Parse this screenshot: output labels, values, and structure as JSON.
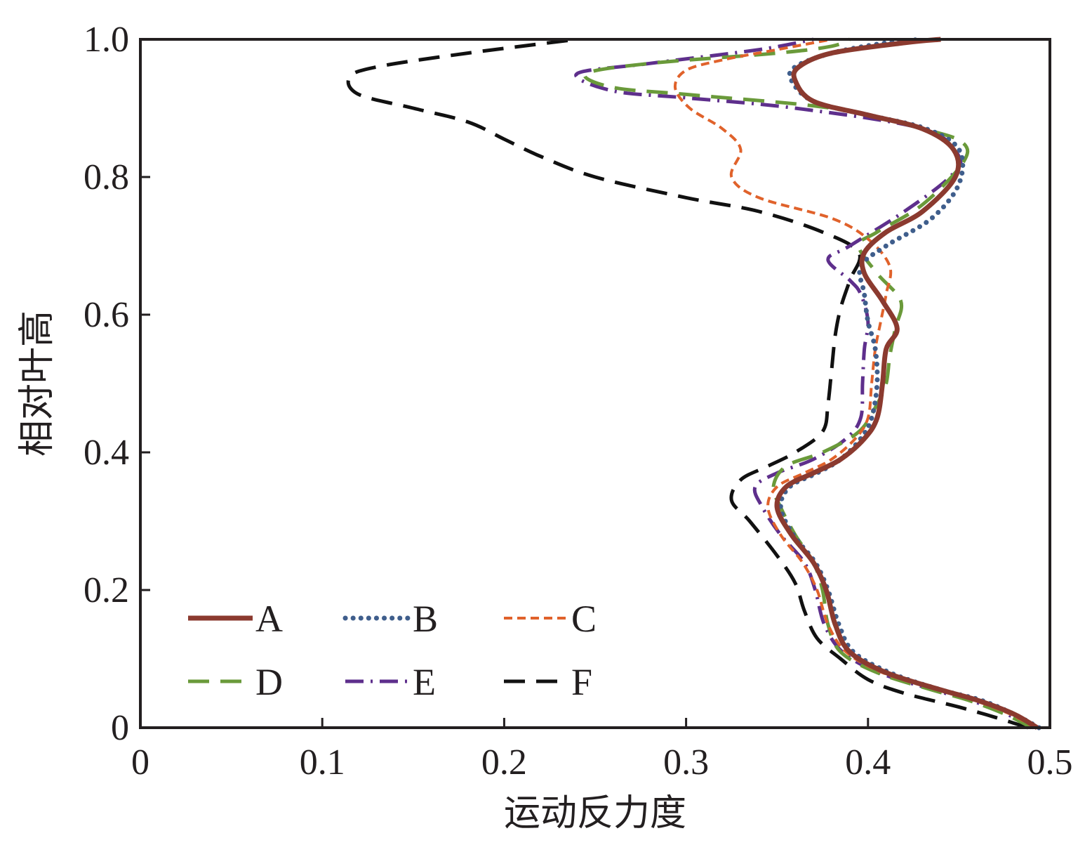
{
  "chart_data": {
    "type": "line",
    "title": "",
    "xlabel": "运动反力度",
    "ylabel": "相对叶高",
    "xlim": [
      0,
      0.5
    ],
    "ylim": [
      0,
      1.0
    ],
    "xticks": [
      "0",
      "0.1",
      "0.2",
      "0.3",
      "0.4",
      "0.5"
    ],
    "yticks": [
      "0",
      "0.2",
      "0.4",
      "0.6",
      "0.8",
      "1.0"
    ],
    "grid": false,
    "legend_position": "bottom-left",
    "series": [
      {
        "name": "A",
        "color": "#8b3a2f",
        "style": "solid",
        "points": [
          [
            0.493,
            0
          ],
          [
            0.48,
            0.02
          ],
          [
            0.46,
            0.04
          ],
          [
            0.44,
            0.055
          ],
          [
            0.41,
            0.08
          ],
          [
            0.39,
            0.11
          ],
          [
            0.382,
            0.15
          ],
          [
            0.377,
            0.2
          ],
          [
            0.37,
            0.24
          ],
          [
            0.358,
            0.28
          ],
          [
            0.35,
            0.32
          ],
          [
            0.355,
            0.35
          ],
          [
            0.37,
            0.37
          ],
          [
            0.385,
            0.39
          ],
          [
            0.398,
            0.42
          ],
          [
            0.405,
            0.45
          ],
          [
            0.408,
            0.5
          ],
          [
            0.41,
            0.55
          ],
          [
            0.416,
            0.58
          ],
          [
            0.408,
            0.62
          ],
          [
            0.398,
            0.66
          ],
          [
            0.398,
            0.69
          ],
          [
            0.41,
            0.72
          ],
          [
            0.43,
            0.75
          ],
          [
            0.448,
            0.8
          ],
          [
            0.447,
            0.84
          ],
          [
            0.43,
            0.87
          ],
          [
            0.4,
            0.89
          ],
          [
            0.37,
            0.91
          ],
          [
            0.36,
            0.94
          ],
          [
            0.362,
            0.96
          ],
          [
            0.38,
            0.98
          ],
          [
            0.42,
            0.995
          ],
          [
            0.44,
            1.0
          ]
        ]
      },
      {
        "name": "B",
        "color": "#3f5e8c",
        "style": "dotted",
        "points": [
          [
            0.494,
            0
          ],
          [
            0.48,
            0.02
          ],
          [
            0.462,
            0.04
          ],
          [
            0.44,
            0.055
          ],
          [
            0.412,
            0.08
          ],
          [
            0.392,
            0.11
          ],
          [
            0.384,
            0.15
          ],
          [
            0.378,
            0.2
          ],
          [
            0.371,
            0.24
          ],
          [
            0.359,
            0.28
          ],
          [
            0.352,
            0.32
          ],
          [
            0.357,
            0.35
          ],
          [
            0.372,
            0.37
          ],
          [
            0.385,
            0.39
          ],
          [
            0.396,
            0.42
          ],
          [
            0.402,
            0.45
          ],
          [
            0.405,
            0.5
          ],
          [
            0.404,
            0.55
          ],
          [
            0.4,
            0.59
          ],
          [
            0.398,
            0.63
          ],
          [
            0.396,
            0.67
          ],
          [
            0.41,
            0.7
          ],
          [
            0.435,
            0.74
          ],
          [
            0.45,
            0.79
          ],
          [
            0.45,
            0.84
          ],
          [
            0.432,
            0.87
          ],
          [
            0.4,
            0.89
          ],
          [
            0.37,
            0.91
          ],
          [
            0.358,
            0.94
          ],
          [
            0.36,
            0.96
          ],
          [
            0.38,
            0.98
          ],
          [
            0.41,
            0.995
          ],
          [
            0.43,
            1.0
          ]
        ]
      },
      {
        "name": "C",
        "color": "#e0622b",
        "style": "short-dash",
        "points": [
          [
            0.492,
            0
          ],
          [
            0.478,
            0.02
          ],
          [
            0.458,
            0.04
          ],
          [
            0.438,
            0.055
          ],
          [
            0.408,
            0.08
          ],
          [
            0.388,
            0.11
          ],
          [
            0.378,
            0.15
          ],
          [
            0.372,
            0.2
          ],
          [
            0.364,
            0.24
          ],
          [
            0.352,
            0.28
          ],
          [
            0.345,
            0.32
          ],
          [
            0.35,
            0.35
          ],
          [
            0.365,
            0.37
          ],
          [
            0.38,
            0.39
          ],
          [
            0.393,
            0.42
          ],
          [
            0.4,
            0.45
          ],
          [
            0.402,
            0.5
          ],
          [
            0.404,
            0.55
          ],
          [
            0.407,
            0.59
          ],
          [
            0.41,
            0.63
          ],
          [
            0.412,
            0.67
          ],
          [
            0.4,
            0.71
          ],
          [
            0.38,
            0.74
          ],
          [
            0.34,
            0.77
          ],
          [
            0.325,
            0.8
          ],
          [
            0.33,
            0.84
          ],
          [
            0.32,
            0.87
          ],
          [
            0.302,
            0.9
          ],
          [
            0.294,
            0.93
          ],
          [
            0.3,
            0.955
          ],
          [
            0.32,
            0.97
          ],
          [
            0.35,
            0.985
          ],
          [
            0.38,
            1.0
          ]
        ]
      },
      {
        "name": "D",
        "color": "#6a9a3a",
        "style": "long-dash",
        "points": [
          [
            0.49,
            0
          ],
          [
            0.475,
            0.02
          ],
          [
            0.455,
            0.04
          ],
          [
            0.435,
            0.055
          ],
          [
            0.405,
            0.08
          ],
          [
            0.385,
            0.11
          ],
          [
            0.378,
            0.15
          ],
          [
            0.375,
            0.2
          ],
          [
            0.37,
            0.24
          ],
          [
            0.36,
            0.28
          ],
          [
            0.352,
            0.32
          ],
          [
            0.348,
            0.35
          ],
          [
            0.355,
            0.38
          ],
          [
            0.375,
            0.4
          ],
          [
            0.395,
            0.43
          ],
          [
            0.405,
            0.47
          ],
          [
            0.41,
            0.5
          ],
          [
            0.412,
            0.54
          ],
          [
            0.415,
            0.58
          ],
          [
            0.418,
            0.62
          ],
          [
            0.405,
            0.66
          ],
          [
            0.395,
            0.7
          ],
          [
            0.405,
            0.72
          ],
          [
            0.43,
            0.76
          ],
          [
            0.452,
            0.82
          ],
          [
            0.452,
            0.85
          ],
          [
            0.43,
            0.87
          ],
          [
            0.38,
            0.9
          ],
          [
            0.3,
            0.92
          ],
          [
            0.26,
            0.93
          ],
          [
            0.245,
            0.95
          ],
          [
            0.28,
            0.965
          ],
          [
            0.35,
            0.98
          ],
          [
            0.38,
            0.99
          ],
          [
            0.39,
            1.0
          ]
        ]
      },
      {
        "name": "E",
        "color": "#5e2f8c",
        "style": "dash-dot",
        "points": [
          [
            0.491,
            0
          ],
          [
            0.476,
            0.02
          ],
          [
            0.456,
            0.04
          ],
          [
            0.436,
            0.055
          ],
          [
            0.406,
            0.08
          ],
          [
            0.386,
            0.11
          ],
          [
            0.376,
            0.15
          ],
          [
            0.371,
            0.2
          ],
          [
            0.365,
            0.24
          ],
          [
            0.352,
            0.28
          ],
          [
            0.342,
            0.32
          ],
          [
            0.338,
            0.35
          ],
          [
            0.35,
            0.37
          ],
          [
            0.37,
            0.39
          ],
          [
            0.388,
            0.42
          ],
          [
            0.396,
            0.45
          ],
          [
            0.397,
            0.5
          ],
          [
            0.398,
            0.55
          ],
          [
            0.4,
            0.59
          ],
          [
            0.396,
            0.63
          ],
          [
            0.39,
            0.65
          ],
          [
            0.378,
            0.68
          ],
          [
            0.39,
            0.7
          ],
          [
            0.42,
            0.75
          ],
          [
            0.445,
            0.8
          ],
          [
            0.45,
            0.83
          ],
          [
            0.43,
            0.87
          ],
          [
            0.36,
            0.9
          ],
          [
            0.3,
            0.915
          ],
          [
            0.26,
            0.925
          ],
          [
            0.24,
            0.95
          ],
          [
            0.28,
            0.965
          ],
          [
            0.34,
            0.985
          ],
          [
            0.37,
            1.0
          ]
        ]
      },
      {
        "name": "F",
        "color": "#111111",
        "style": "long-dash",
        "points": [
          [
            0.488,
            0
          ],
          [
            0.47,
            0.015
          ],
          [
            0.45,
            0.03
          ],
          [
            0.42,
            0.05
          ],
          [
            0.4,
            0.07
          ],
          [
            0.385,
            0.1
          ],
          [
            0.372,
            0.13
          ],
          [
            0.365,
            0.17
          ],
          [
            0.36,
            0.21
          ],
          [
            0.35,
            0.25
          ],
          [
            0.335,
            0.3
          ],
          [
            0.325,
            0.33
          ],
          [
            0.33,
            0.36
          ],
          [
            0.345,
            0.38
          ],
          [
            0.36,
            0.4
          ],
          [
            0.375,
            0.43
          ],
          [
            0.378,
            0.47
          ],
          [
            0.38,
            0.52
          ],
          [
            0.382,
            0.57
          ],
          [
            0.385,
            0.61
          ],
          [
            0.39,
            0.65
          ],
          [
            0.395,
            0.69
          ],
          [
            0.375,
            0.72
          ],
          [
            0.34,
            0.75
          ],
          [
            0.3,
            0.77
          ],
          [
            0.25,
            0.8
          ],
          [
            0.22,
            0.83
          ],
          [
            0.2,
            0.855
          ],
          [
            0.18,
            0.88
          ],
          [
            0.15,
            0.9
          ],
          [
            0.12,
            0.92
          ],
          [
            0.115,
            0.945
          ],
          [
            0.13,
            0.96
          ],
          [
            0.18,
            0.98
          ],
          [
            0.24,
            1.0
          ]
        ]
      }
    ]
  }
}
